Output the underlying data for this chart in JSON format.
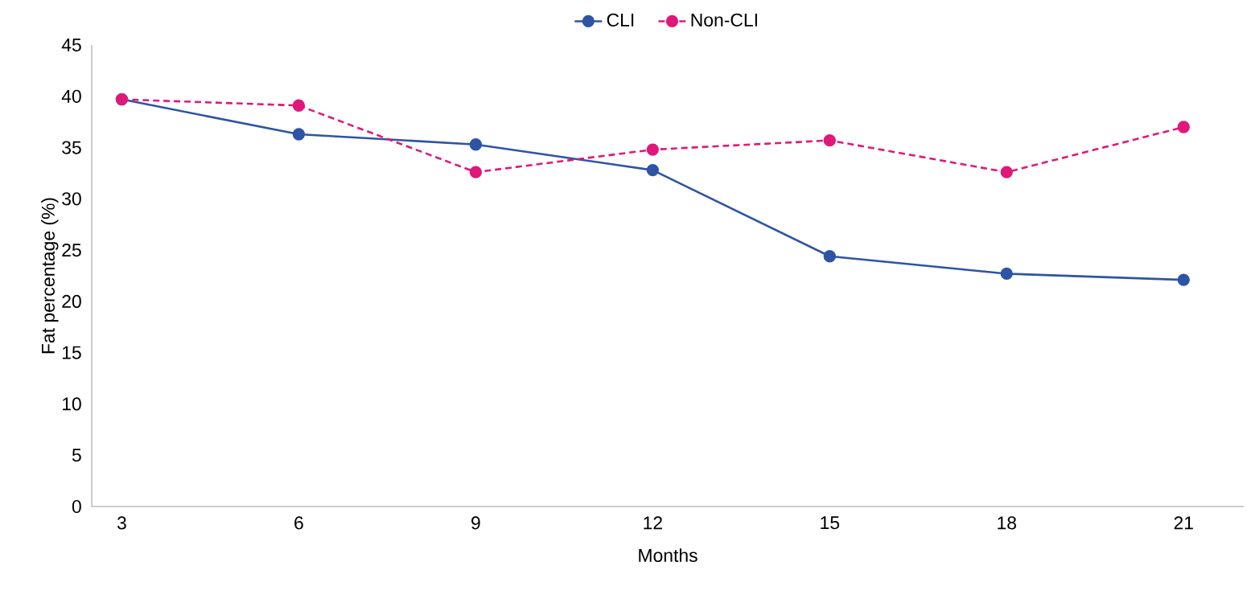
{
  "chart_data": {
    "type": "line",
    "xlabel": "Months",
    "ylabel": "Fat percentage (%)",
    "categories": [
      "3",
      "6",
      "9",
      "12",
      "15",
      "18",
      "21"
    ],
    "series": [
      {
        "name": "CLI",
        "color": "#2e54a4",
        "values": [
          39.7,
          36.3,
          35.3,
          32.8,
          24.4,
          22.7,
          22.1
        ],
        "line_style": "solid"
      },
      {
        "name": "Non-CLI",
        "color": "#e0187a",
        "values": [
          39.7,
          39.1,
          32.6,
          34.8,
          35.7,
          32.6,
          37.0
        ],
        "line_style": "dashed"
      }
    ],
    "ylim": [
      0,
      45
    ],
    "yticks": [
      0,
      5,
      10,
      15,
      20,
      25,
      30,
      35,
      40,
      45
    ],
    "legend": "top",
    "marker": "circle",
    "grid": false
  }
}
